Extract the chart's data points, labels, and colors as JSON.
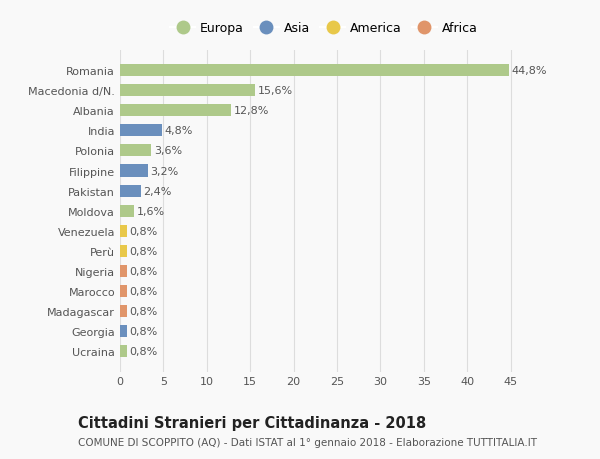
{
  "countries": [
    "Romania",
    "Macedonia d/N.",
    "Albania",
    "India",
    "Polonia",
    "Filippine",
    "Pakistan",
    "Moldova",
    "Venezuela",
    "Perù",
    "Nigeria",
    "Marocco",
    "Madagascar",
    "Georgia",
    "Ucraina"
  ],
  "values": [
    44.8,
    15.6,
    12.8,
    4.8,
    3.6,
    3.2,
    2.4,
    1.6,
    0.8,
    0.8,
    0.8,
    0.8,
    0.8,
    0.8,
    0.8
  ],
  "labels": [
    "44,8%",
    "15,6%",
    "12,8%",
    "4,8%",
    "3,6%",
    "3,2%",
    "2,4%",
    "1,6%",
    "0,8%",
    "0,8%",
    "0,8%",
    "0,8%",
    "0,8%",
    "0,8%",
    "0,8%"
  ],
  "continents": [
    "Europa",
    "Europa",
    "Europa",
    "Asia",
    "Europa",
    "Asia",
    "Asia",
    "Europa",
    "America",
    "America",
    "Africa",
    "Africa",
    "Africa",
    "Asia",
    "Europa"
  ],
  "continent_colors": {
    "Europa": "#aec98a",
    "Asia": "#6a8fbd",
    "America": "#e8c84a",
    "Africa": "#e0956a"
  },
  "legend_order": [
    "Europa",
    "Asia",
    "America",
    "Africa"
  ],
  "title_bold": "Cittadini Stranieri per Cittadinanza - 2018",
  "subtitle": "COMUNE DI SCOPPITO (AQ) - Dati ISTAT al 1° gennaio 2018 - Elaborazione TUTTITALIA.IT",
  "xlim": [
    0,
    47
  ],
  "xticks": [
    0,
    5,
    10,
    15,
    20,
    25,
    30,
    35,
    40,
    45
  ],
  "background_color": "#f9f9f9",
  "grid_color": "#dddddd",
  "bar_height": 0.6,
  "label_fontsize": 8,
  "tick_fontsize": 8,
  "title_fontsize": 10.5,
  "subtitle_fontsize": 7.5,
  "legend_fontsize": 9
}
